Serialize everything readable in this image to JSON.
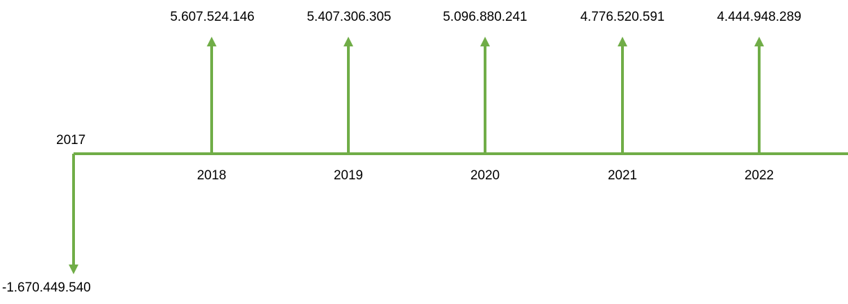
{
  "colors": {
    "arrow": "#70ad47",
    "text": "#000000"
  },
  "diagram": {
    "type": "cash-flow-timeline",
    "initial": {
      "year": "2017",
      "value": "-1.670.449.540"
    },
    "inflows": [
      {
        "year": "2018",
        "value": "5.607.524.146"
      },
      {
        "year": "2019",
        "value": "5.407.306.305"
      },
      {
        "year": "2020",
        "value": "5.096.880.241"
      },
      {
        "year": "2021",
        "value": "4.776.520.591"
      },
      {
        "year": "2022",
        "value": "4.444.948.289"
      }
    ]
  }
}
